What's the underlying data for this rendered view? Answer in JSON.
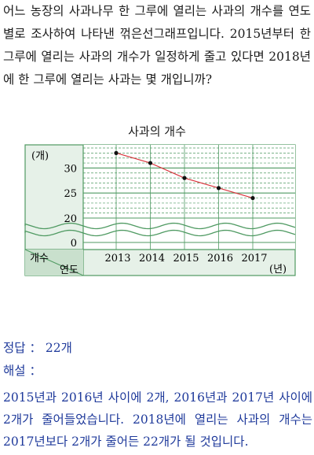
{
  "question": "어느 농장의 사과나무 한 그루에 열리는 사과의 개수를 연도별로 조사하여 나타낸 꺾은선그래프입니다. 2015년부터 한 그루에 열리는 사과의 개수가 일정하게 줄고 있다면 2018년에 한 그루에 열리는 사과는 몇 개입니까?",
  "chart_data": {
    "type": "line",
    "title": "사과의 개수",
    "unit_y": "(개)",
    "unit_x": "(년)",
    "ylabel": "개수",
    "xlabel": "연도",
    "categories": [
      "2013",
      "2014",
      "2015",
      "2016",
      "2017"
    ],
    "values": [
      33,
      31,
      28,
      26,
      24
    ],
    "y_ticks": [
      "0",
      "20",
      "25",
      "30"
    ],
    "y_axis_break": [
      0,
      20
    ],
    "ylim": [
      20,
      34
    ],
    "grid": true,
    "line_color": "#d9363e",
    "grid_color": "#4f9a62",
    "panel_color": "#e6f1e8"
  },
  "answer": {
    "label": "정답 ： 22개",
    "explanation_label": "해설 ：",
    "explanation": "2015년과 2016년 사이에 2개, 2016년과 2017년 사이에 2개가 줄어들었습니다. 2018년에 열리는 사과의 개수는 2017년보다 2개가 줄어든 22개가 될 것입니다."
  }
}
